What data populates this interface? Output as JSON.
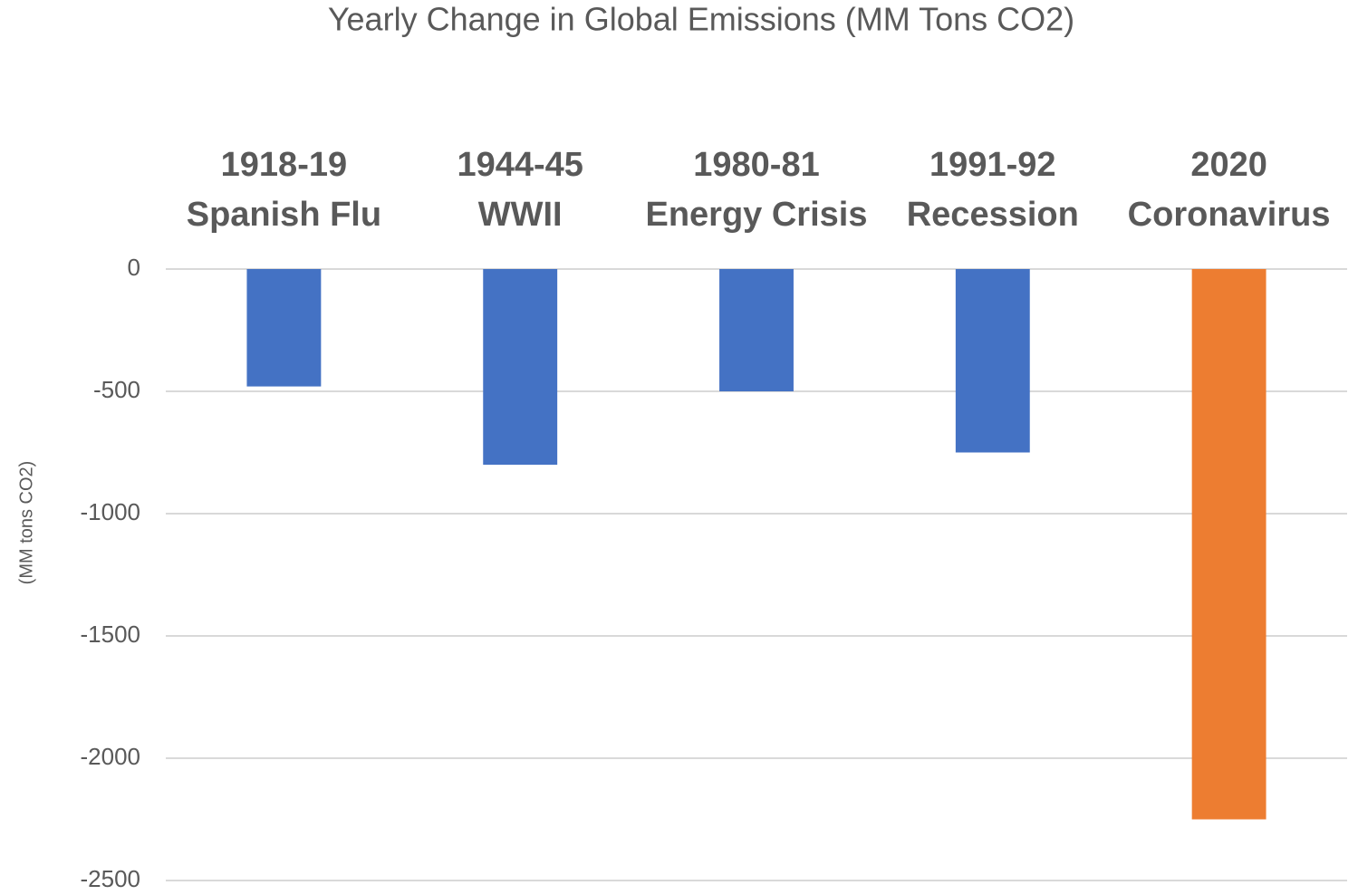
{
  "chart_data": {
    "type": "bar",
    "title": "Yearly Change in Global Emissions (MM Tons CO2)",
    "y_label": "(MM tons CO2)",
    "categories": [
      "1918-19\nSpanish Flu",
      "1944-45\nWWII",
      "1980-81\nEnergy Crisis",
      "1991-92\nRecession",
      "2020\nCoronavirus"
    ],
    "values": [
      -480,
      -800,
      -500,
      -750,
      -2250
    ],
    "colors": [
      "#4472c4",
      "#4472c4",
      "#4472c4",
      "#4472c4",
      "#ed7d31"
    ],
    "ylim": [
      -2500,
      0
    ],
    "yticks": [
      0,
      -500,
      -1000,
      -1500,
      -2000,
      -2500
    ],
    "grid": true
  }
}
